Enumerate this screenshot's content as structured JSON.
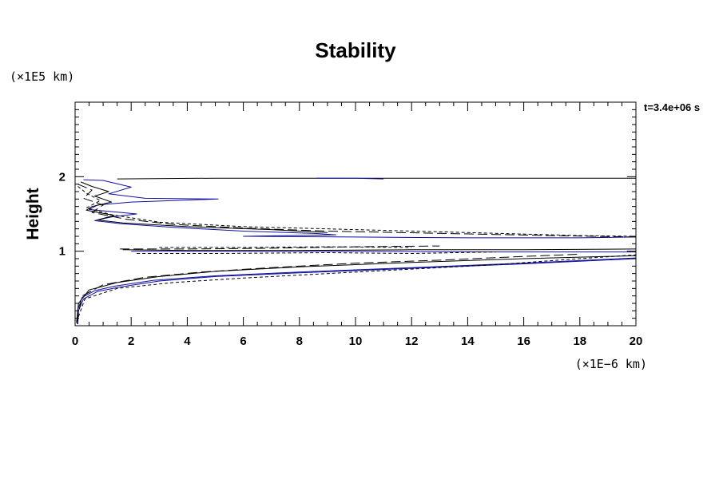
{
  "chart_data": {
    "type": "line",
    "title": "Stability",
    "ylabel": "Height",
    "xlabel": "",
    "x_scale_label": "(×1E−6 km)",
    "y_scale_label": "(×1E5 km)",
    "time_annotation": "t=3.4e+06 s",
    "xlim": [
      0,
      20
    ],
    "ylim": [
      0,
      3
    ],
    "x_ticks": [
      "0",
      "2",
      "4",
      "6",
      "8",
      "10",
      "12",
      "14",
      "16",
      "18",
      "20"
    ],
    "y_ticks": [
      "1",
      "2"
    ],
    "y_tick_values": [
      1,
      2
    ],
    "grid": false,
    "legend": "none",
    "series": [
      {
        "color": "#1010a0",
        "style": "solid",
        "points": [
          [
            0.1,
            0.02
          ],
          [
            0.12,
            0.2
          ],
          [
            0.3,
            0.36
          ],
          [
            0.8,
            0.46
          ],
          [
            1.6,
            0.52
          ],
          [
            3,
            0.6
          ],
          [
            5,
            0.66
          ],
          [
            8,
            0.71
          ],
          [
            12,
            0.77
          ],
          [
            16,
            0.83
          ],
          [
            20,
            0.9
          ]
        ]
      },
      {
        "color": "#1010a0",
        "style": "solid",
        "points": [
          [
            0.08,
            0.02
          ],
          [
            0.1,
            0.22
          ],
          [
            0.25,
            0.38
          ],
          [
            0.7,
            0.47
          ],
          [
            1.4,
            0.53
          ],
          [
            2.8,
            0.61
          ],
          [
            5,
            0.67
          ],
          [
            8,
            0.72
          ],
          [
            12,
            0.78
          ],
          [
            16,
            0.84
          ],
          [
            20,
            0.91
          ]
        ]
      },
      {
        "color": "#000000",
        "style": "solid",
        "points": [
          [
            0.05,
            0.04
          ],
          [
            0.12,
            0.3
          ],
          [
            0.5,
            0.48
          ],
          [
            1.5,
            0.58
          ],
          [
            3,
            0.66
          ],
          [
            5,
            0.73
          ],
          [
            8,
            0.79
          ],
          [
            12,
            0.85
          ],
          [
            16,
            0.9
          ],
          [
            20,
            0.94
          ]
        ]
      },
      {
        "color": "#000000",
        "style": "longdash",
        "points": [
          [
            0.05,
            0.05
          ],
          [
            0.25,
            0.4
          ],
          [
            1,
            0.55
          ],
          [
            2.5,
            0.65
          ],
          [
            4.5,
            0.72
          ],
          [
            7,
            0.78
          ],
          [
            10,
            0.84
          ],
          [
            13,
            0.88
          ],
          [
            16,
            0.93
          ],
          [
            18,
            0.96
          ]
        ]
      },
      {
        "color": "#000000",
        "style": "shortdash",
        "points": [
          [
            0.05,
            0.05
          ],
          [
            0.35,
            0.36
          ],
          [
            1.5,
            0.5
          ],
          [
            3.5,
            0.58
          ],
          [
            6,
            0.64
          ],
          [
            9,
            0.7
          ],
          [
            12,
            0.76
          ],
          [
            15,
            0.82
          ],
          [
            18,
            0.9
          ],
          [
            20,
            0.95
          ]
        ]
      },
      {
        "color": "#1010a0",
        "style": "solid",
        "points": [
          [
            2,
            1.0
          ],
          [
            5,
            1.0
          ],
          [
            10,
            1.0
          ],
          [
            15,
            0.99
          ],
          [
            20,
            0.99
          ]
        ]
      },
      {
        "color": "#000000",
        "style": "solid",
        "points": [
          [
            1.7,
            1.02
          ],
          [
            4,
            1.01
          ],
          [
            8,
            1.01
          ],
          [
            12,
            1.02
          ],
          [
            16,
            1.02
          ],
          [
            20,
            1.03
          ]
        ]
      },
      {
        "color": "#000000",
        "style": "longdash",
        "points": [
          [
            1.6,
            1.03
          ],
          [
            4,
            1.03
          ],
          [
            7,
            1.04
          ],
          [
            10,
            1.06
          ],
          [
            13,
            1.07
          ]
        ]
      },
      {
        "color": "#000000",
        "style": "shortdash",
        "points": [
          [
            2.2,
            0.97
          ],
          [
            5,
            0.97
          ],
          [
            9,
            0.98
          ],
          [
            12,
            0.97
          ],
          [
            15,
            0.99
          ]
        ]
      },
      {
        "color": "#000000",
        "style": "shortdash",
        "points": [
          [
            3,
            1.05
          ],
          [
            6,
            1.05
          ],
          [
            9,
            1.06
          ],
          [
            12,
            1.05
          ]
        ]
      },
      {
        "color": "#1010a0",
        "style": "solid",
        "points": [
          [
            0.3,
            1.96
          ],
          [
            1,
            1.95
          ],
          [
            2,
            1.86
          ],
          [
            1.2,
            1.77
          ],
          [
            2.5,
            1.71
          ],
          [
            5.1,
            1.7
          ],
          [
            2,
            1.66
          ],
          [
            0.8,
            1.62
          ],
          [
            0.5,
            1.56
          ],
          [
            2.2,
            1.5
          ],
          [
            1.3,
            1.46
          ],
          [
            0.7,
            1.41
          ],
          [
            1.6,
            1.37
          ],
          [
            3.5,
            1.32
          ],
          [
            6,
            1.27
          ],
          [
            8.5,
            1.24
          ],
          [
            9.3,
            1.22
          ],
          [
            6,
            1.2
          ],
          [
            10,
            1.19
          ],
          [
            14,
            1.18
          ],
          [
            18,
            1.18
          ],
          [
            20,
            1.19
          ]
        ]
      },
      {
        "color": "#000000",
        "style": "solid",
        "points": [
          [
            0.2,
            1.93
          ],
          [
            0.6,
            1.87
          ],
          [
            1.2,
            1.8
          ],
          [
            0.7,
            1.74
          ],
          [
            1.3,
            1.66
          ],
          [
            0.6,
            1.6
          ],
          [
            0.4,
            1.55
          ],
          [
            1.4,
            1.48
          ],
          [
            0.8,
            1.42
          ],
          [
            1.7,
            1.38
          ],
          [
            4,
            1.33
          ],
          [
            7,
            1.29
          ],
          [
            9,
            1.25
          ]
        ]
      },
      {
        "color": "#000000",
        "style": "longdash",
        "points": [
          [
            0.1,
            1.9
          ],
          [
            0.6,
            1.82
          ],
          [
            0.3,
            1.71
          ],
          [
            1,
            1.62
          ],
          [
            0.6,
            1.52
          ],
          [
            1.8,
            1.43
          ],
          [
            3.5,
            1.36
          ],
          [
            6,
            1.31
          ],
          [
            9,
            1.27
          ],
          [
            13,
            1.24
          ],
          [
            17,
            1.21
          ],
          [
            20,
            1.19
          ]
        ]
      },
      {
        "color": "#000000",
        "style": "shortdash",
        "points": [
          [
            0.1,
            1.87
          ],
          [
            0.4,
            1.78
          ],
          [
            0.9,
            1.68
          ],
          [
            0.4,
            1.58
          ],
          [
            1.3,
            1.49
          ],
          [
            3,
            1.39
          ],
          [
            6,
            1.33
          ],
          [
            10,
            1.29
          ],
          [
            14,
            1.25
          ],
          [
            18,
            1.21
          ],
          [
            20,
            1.2
          ]
        ]
      },
      {
        "color": "#000000",
        "style": "solid",
        "points": [
          [
            1.5,
            1.97
          ],
          [
            5,
            1.98
          ],
          [
            10,
            1.98
          ],
          [
            15,
            1.98
          ],
          [
            20,
            1.98
          ]
        ]
      },
      {
        "color": "#1010a0",
        "style": "solid",
        "points": [
          [
            8.6,
            1.98
          ],
          [
            10,
            1.98
          ],
          [
            11,
            1.97
          ]
        ]
      }
    ]
  }
}
